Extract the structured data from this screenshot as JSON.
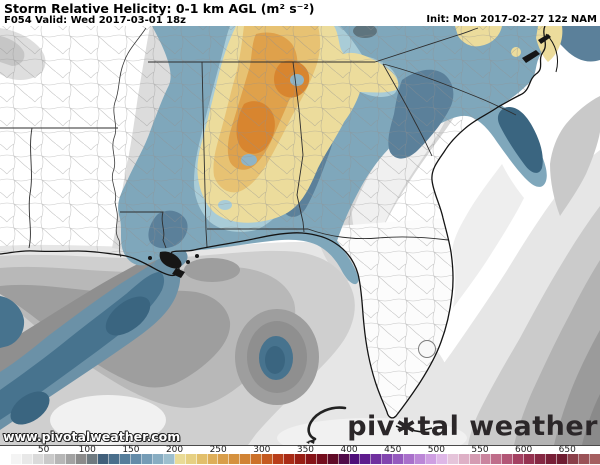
{
  "header": {
    "title": "Storm Relative Helicity: 0-1 km AGL (m² s⁻²)",
    "valid": "F054 Valid: Wed 2017-03-01 18z",
    "init": "Init: Mon 2017-02-27 12z NAM"
  },
  "watermark": "www.pivotalweather.com",
  "logo": {
    "part1": "piv",
    "gear": "✱",
    "part2": "tal weather",
    "color": "#2b2729"
  },
  "colorbar": {
    "units": "m² s⁻²",
    "bin_size_units": 12.5,
    "units_max": 687.5,
    "labels": [
      50,
      100,
      150,
      200,
      250,
      300,
      350,
      400,
      450,
      500,
      550,
      600,
      650
    ],
    "colors": [
      "#ffffff",
      "#f4f4f4",
      "#e8e8e8",
      "#dadada",
      "#c9c9c9",
      "#b6b6b6",
      "#a2a2a2",
      "#8b8b8b",
      "#6f7a80",
      "#41607b",
      "#4a6f8c",
      "#567e9b",
      "#648ca9",
      "#759cb6",
      "#88adc2",
      "#9dbfce",
      "#e9db97",
      "#e6d083",
      "#e2bf6b",
      "#deae59",
      "#d99e4a",
      "#d5913e",
      "#d18334",
      "#cc7129",
      "#c4591f",
      "#b83e1a",
      "#a92b16",
      "#981e14",
      "#861317",
      "#740d1d",
      "#600a27",
      "#500b49",
      "#4e0e79",
      "#5e1c8d",
      "#70309f",
      "#8245af",
      "#955abe",
      "#a970cb",
      "#bc87d7",
      "#cf9fe2",
      "#dfb7e7",
      "#e5c4da",
      "#deb0c6",
      "#d59bb2",
      "#ca849e",
      "#bf6d8a",
      "#b25676",
      "#a44162",
      "#953250",
      "#862843",
      "#781f37",
      "#6f1d31",
      "#8a3f49",
      "#9a5257",
      "#a55f60"
    ]
  },
  "palette": {
    "oceanL": "#e6e6e6",
    "oceanM": "#cfcfcf",
    "oceanD1": "#b8b8b8",
    "oceanD2": "#9e9e9e",
    "oceanD3": "#8f8f8f",
    "atlM": "#cbcbcb",
    "atlD1": "#b3b3b3",
    "atlD2": "#9b9b9b",
    "atlD3": "#8a8a8a",
    "ridge": "#d6d6d6",
    "ridgeCore": "#f0f0f0",
    "lightPatch": "#f1f1f1",
    "coastLight": "#eeeeee",
    "tongueGray": "#c9c9c9",
    "landFringe": "#dcdcdc",
    "topGray": "#dedede",
    "topGrayCore": "#c6c6c6",
    "flWhite": "#fcfcfc",
    "blue": "#7fa7bb",
    "blueDark": "#5b809a",
    "blueDeep": "#3a6580",
    "blueBand": "#47738e",
    "blueBandOuter": "#6b91a7",
    "blueLight": "#a9ccd7",
    "blueHole": "#8fb4c6",
    "graySpotTop": "#5e747e",
    "yPale": "#ecdc9c",
    "yLight": "#e7c273",
    "orMid": "#dfa14b",
    "orDeep": "#d8852f",
    "lake": "#f8f8f8",
    "marsh": "#161616"
  }
}
